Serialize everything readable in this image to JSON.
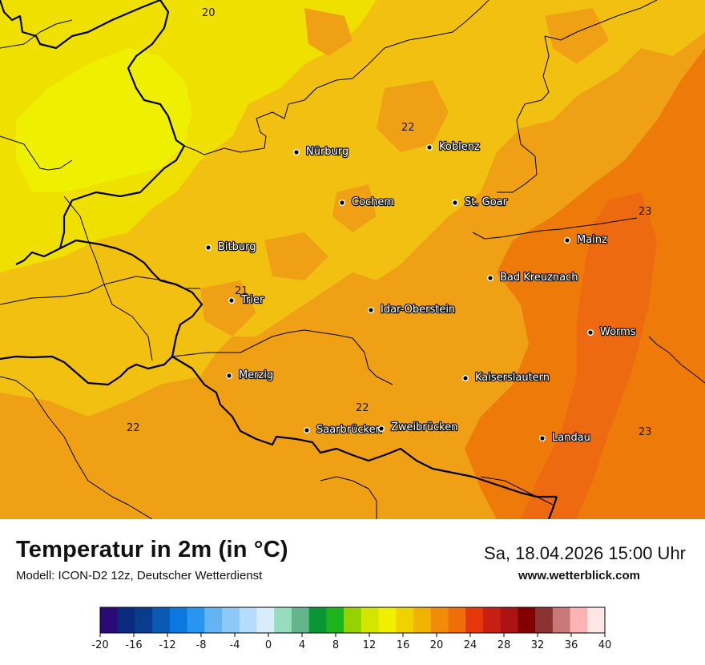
{
  "map": {
    "colors": {
      "t20": "#f0e000",
      "t21": "#f2c010",
      "t22": "#f0a014",
      "t23": "#ee7a0a",
      "t24": "#ee6a10",
      "lemon": "#eef000",
      "border": "#000000"
    },
    "cities": [
      {
        "name": "Nürburg"
      },
      {
        "name": "Koblenz"
      },
      {
        "name": "Cochem"
      },
      {
        "name": "St. Goar"
      },
      {
        "name": "Mainz"
      },
      {
        "name": "Bitburg"
      },
      {
        "name": "Bad Kreuznach"
      },
      {
        "name": "Trier"
      },
      {
        "name": "Idar-Oberstein"
      },
      {
        "name": "Worms"
      },
      {
        "name": "Merzig"
      },
      {
        "name": "Kaiserslautern"
      },
      {
        "name": "Saarbrücken"
      },
      {
        "name": "Zweibrücken"
      },
      {
        "name": "Landau"
      }
    ],
    "values": [
      "20",
      "22",
      "23",
      "21",
      "22",
      "22",
      "23"
    ]
  },
  "footer": {
    "title": "Temperatur in 2m (in °C)",
    "model": "Modell: ICON-D2 12z, Deutscher Wetterdienst",
    "datetime": "Sa, 18.04.2026 15:00 Uhr",
    "site": "www.wetterblick.com"
  },
  "scale": {
    "colors": [
      "#2a0a78",
      "#0a2a80",
      "#0a3c8c",
      "#0a5ab4",
      "#0a78dc",
      "#2896f0",
      "#64b4f4",
      "#8cc8f8",
      "#b4dcfc",
      "#d8ecfc",
      "#96dcbe",
      "#64b48c",
      "#0a9632",
      "#1eb41e",
      "#96d200",
      "#d2e600",
      "#f0f000",
      "#f0d200",
      "#f0b400",
      "#f08c0a",
      "#f06e0a",
      "#e6370a",
      "#c81e14",
      "#aa1414",
      "#820000",
      "#8c3232",
      "#c87878",
      "#ffb4b4",
      "#ffe6e6"
    ],
    "ticks": [
      "-20",
      "-16",
      "-12",
      "-8",
      "-4",
      "0",
      "4",
      "8",
      "12",
      "16",
      "20",
      "24",
      "28",
      "32",
      "36",
      "40"
    ]
  }
}
